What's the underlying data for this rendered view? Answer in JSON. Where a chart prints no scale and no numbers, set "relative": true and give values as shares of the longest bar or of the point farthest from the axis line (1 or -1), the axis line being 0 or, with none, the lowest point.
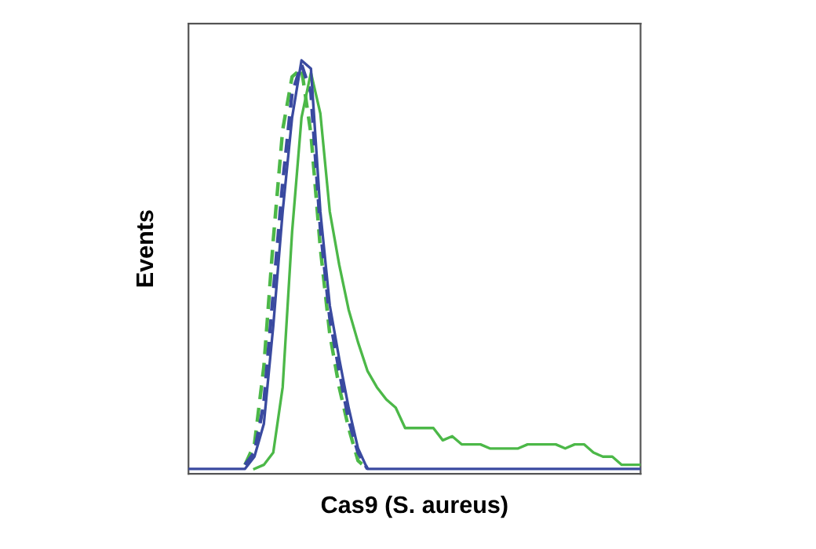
{
  "chart_data": {
    "type": "line",
    "relative": true,
    "xlabel": "Cas9 (S. aureus)",
    "ylabel": "Events",
    "tick_labels": false,
    "grid": false,
    "legend": false,
    "categories": [
      null,
      null,
      null,
      null,
      null,
      null,
      null,
      null,
      null,
      null,
      null,
      null,
      null,
      null,
      null,
      null,
      null,
      null,
      null,
      null,
      null,
      null,
      null,
      null,
      null,
      null,
      null,
      null,
      null,
      null,
      null,
      null,
      null,
      null,
      null,
      null,
      null,
      null,
      null,
      null,
      null,
      null,
      null,
      null,
      null,
      null,
      null,
      null,
      null
    ],
    "series": [
      {
        "color": "#4cb848",
        "line_style": "dashed",
        "values": [
          null,
          null,
          null,
          null,
          null,
          null,
          0.01,
          0.06,
          0.25,
          0.56,
          0.83,
          0.96,
          0.98,
          0.82,
          0.54,
          0.33,
          0.2,
          0.1,
          0.02,
          0,
          null,
          null,
          null,
          null,
          null,
          null,
          null,
          null,
          null,
          null,
          null,
          null,
          null,
          null,
          null,
          null,
          null,
          null,
          null,
          null,
          null,
          null,
          null,
          null,
          null,
          null,
          null,
          null,
          null
        ]
      },
      {
        "color": "#3a4aa0",
        "line_style": "dashed",
        "values": [
          null,
          null,
          null,
          null,
          null,
          null,
          0.01,
          0.04,
          0.16,
          0.43,
          0.7,
          0.92,
          0.99,
          0.92,
          0.59,
          0.37,
          0.24,
          0.12,
          0.04,
          0,
          null,
          null,
          null,
          null,
          null,
          null,
          null,
          null,
          null,
          null,
          null,
          null,
          null,
          null,
          null,
          null,
          null,
          null,
          null,
          null,
          null,
          null,
          null,
          null,
          null,
          null,
          null,
          null,
          null
        ]
      },
      {
        "color": "#3a4aa0",
        "line_style": "solid",
        "values": [
          0,
          0,
          0,
          0,
          0,
          0,
          0,
          0.03,
          0.11,
          0.35,
          0.63,
          0.86,
          1.0,
          0.98,
          0.63,
          0.4,
          0.27,
          0.15,
          0.05,
          0,
          0,
          0,
          0,
          0,
          0,
          0,
          0,
          0,
          0,
          0,
          0,
          0,
          0,
          0,
          0,
          0,
          0,
          0,
          0,
          0,
          0,
          0,
          0,
          0,
          0,
          0,
          0,
          0,
          0
        ]
      },
      {
        "color": "#4cb848",
        "line_style": "solid",
        "values": [
          null,
          null,
          null,
          null,
          null,
          null,
          null,
          0,
          0.01,
          0.04,
          0.2,
          0.58,
          0.86,
          0.97,
          0.87,
          0.63,
          0.5,
          0.39,
          0.31,
          0.24,
          0.2,
          0.17,
          0.15,
          0.1,
          0.1,
          0.1,
          0.1,
          0.07,
          0.08,
          0.06,
          0.06,
          0.06,
          0.05,
          0.05,
          0.05,
          0.05,
          0.06,
          0.06,
          0.06,
          0.06,
          0.05,
          0.06,
          0.06,
          0.04,
          0.03,
          0.03,
          0.01,
          0.01,
          0.01
        ]
      }
    ]
  }
}
